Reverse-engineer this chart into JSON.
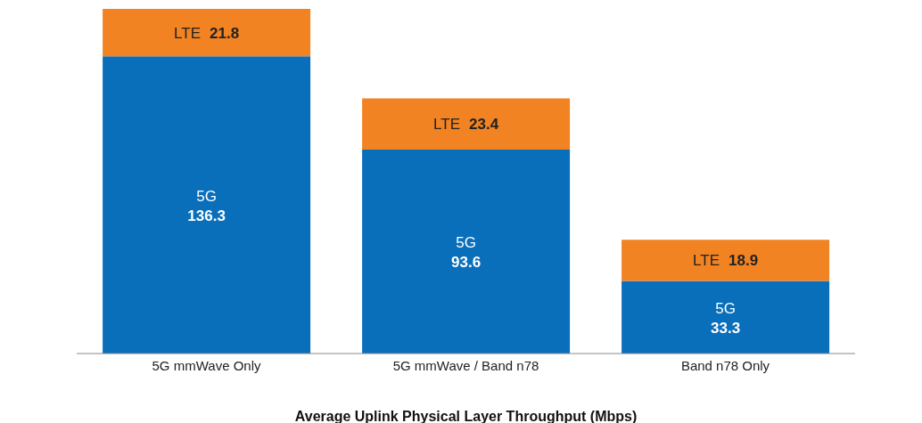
{
  "chart_data": {
    "type": "bar",
    "stacked": true,
    "xlabel": "Average Uplink Physical Layer Throughput (Mbps)",
    "categories": [
      "5G mmWave Only",
      "5G mmWave / Band n78",
      "Band n78 Only"
    ],
    "series": [
      {
        "name": "5G",
        "color": "#0a6fbb",
        "values": [
          136.3,
          93.6,
          33.3
        ]
      },
      {
        "name": "LTE",
        "color": "#f28322",
        "values": [
          21.8,
          23.4,
          18.9
        ]
      }
    ],
    "data_labels": true,
    "legend": false,
    "grid": false
  }
}
